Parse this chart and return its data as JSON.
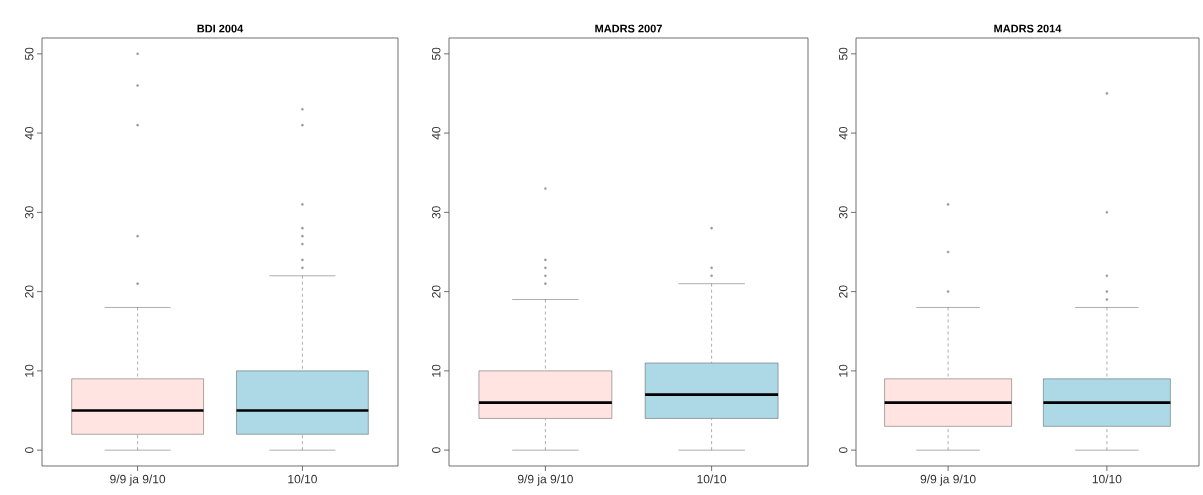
{
  "chart_data": [
    {
      "type": "box",
      "title": "BDI 2004",
      "categories": [
        "9/9 ja 9/10",
        "10/10"
      ],
      "colors": [
        "#ffe4e1",
        "#add8e6"
      ],
      "ylim": [
        -2,
        52
      ],
      "yticks": [
        0,
        10,
        20,
        30,
        40,
        50
      ],
      "boxes": [
        {
          "low": 0,
          "q1": 2,
          "median": 5,
          "q3": 9,
          "high": 18,
          "outliers": [
            21,
            27,
            41,
            46,
            50
          ]
        },
        {
          "low": 0,
          "q1": 2,
          "median": 5,
          "q3": 10,
          "high": 22,
          "outliers": [
            23,
            24,
            26,
            27,
            28,
            31,
            41,
            43
          ]
        }
      ]
    },
    {
      "type": "box",
      "title": "MADRS 2007",
      "categories": [
        "9/9 ja 9/10",
        "10/10"
      ],
      "colors": [
        "#ffe4e1",
        "#add8e6"
      ],
      "ylim": [
        -2,
        52
      ],
      "yticks": [
        0,
        10,
        20,
        30,
        40,
        50
      ],
      "boxes": [
        {
          "low": 0,
          "q1": 4,
          "median": 6,
          "q3": 10,
          "high": 19,
          "outliers": [
            21,
            22,
            23,
            24,
            33
          ]
        },
        {
          "low": 0,
          "q1": 4,
          "median": 7,
          "q3": 11,
          "high": 21,
          "outliers": [
            22,
            23,
            28
          ]
        }
      ]
    },
    {
      "type": "box",
      "title": "MADRS 2014",
      "categories": [
        "9/9 ja 9/10",
        "10/10"
      ],
      "colors": [
        "#ffe4e1",
        "#add8e6"
      ],
      "ylim": [
        -2,
        52
      ],
      "yticks": [
        0,
        10,
        20,
        30,
        40,
        50
      ],
      "boxes": [
        {
          "low": 0,
          "q1": 3,
          "median": 6,
          "q3": 9,
          "high": 18,
          "outliers": [
            20,
            25,
            31
          ]
        },
        {
          "low": 0,
          "q1": 3,
          "median": 6,
          "q3": 9,
          "high": 18,
          "outliers": [
            19,
            20,
            22,
            30,
            45
          ]
        }
      ]
    }
  ]
}
